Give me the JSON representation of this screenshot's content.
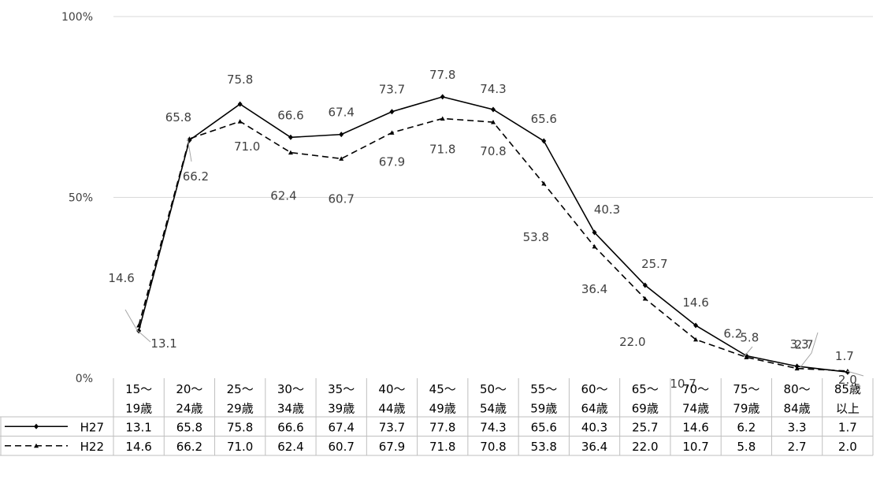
{
  "chart_data": {
    "type": "line",
    "categories": [
      [
        "15～",
        "19歳"
      ],
      [
        "20～",
        "24歳"
      ],
      [
        "25～",
        "29歳"
      ],
      [
        "30～",
        "34歳"
      ],
      [
        "35～",
        "39歳"
      ],
      [
        "40～",
        "44歳"
      ],
      [
        "45～",
        "49歳"
      ],
      [
        "50～",
        "54歳"
      ],
      [
        "55～",
        "59歳"
      ],
      [
        "60～",
        "64歳"
      ],
      [
        "65～",
        "69歳"
      ],
      [
        "70～",
        "74歳"
      ],
      [
        "75～",
        "79歳"
      ],
      [
        "80～",
        "84歳"
      ],
      [
        "85歳",
        "以上"
      ]
    ],
    "series": [
      {
        "name": "H27",
        "style": "solid",
        "values": [
          13.1,
          65.8,
          75.8,
          66.6,
          67.4,
          73.7,
          77.8,
          74.3,
          65.6,
          40.3,
          25.7,
          14.6,
          6.2,
          3.3,
          1.7
        ]
      },
      {
        "name": "H22",
        "style": "dashed",
        "values": [
          14.6,
          66.2,
          71.0,
          62.4,
          60.7,
          67.9,
          71.8,
          70.8,
          53.8,
          36.4,
          22.0,
          10.7,
          5.8,
          2.7,
          2.0
        ]
      }
    ],
    "ylim": [
      0,
      100
    ],
    "yticks": [
      "0%",
      "50%",
      "100%"
    ],
    "grid": true,
    "colors": {
      "line": "#000000",
      "grid": "#d9d9d9",
      "table_border": "#bfbfbf",
      "text": "#404040",
      "leader": "#a6a6a6"
    }
  }
}
